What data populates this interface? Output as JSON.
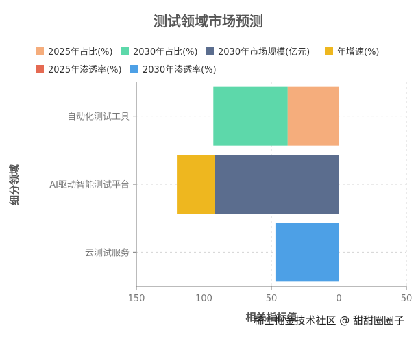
{
  "chart_data": {
    "type": "bar",
    "orientation": "horizontal",
    "stacked": true,
    "title": "测试领域市场预测",
    "xlabel": "相关指标值",
    "ylabel": "细分领域",
    "xlim": [
      150,
      -50
    ],
    "x_ticks": [
      150,
      100,
      50,
      0,
      -50
    ],
    "x_tick_labels": [
      "150",
      "100",
      "50",
      "0",
      "50"
    ],
    "grid": true,
    "legend_position": "top",
    "categories": [
      "自动化测试工具",
      "AI驱动智能测试平台",
      "云测试服务"
    ],
    "series": [
      {
        "name": "2025年占比(%)",
        "color": "#f5ad7c",
        "values": [
          38,
          null,
          null
        ]
      },
      {
        "name": "2030年占比(%)",
        "color": "#5dd8aa",
        "values": [
          55,
          null,
          null
        ]
      },
      {
        "name": "2030年市场规模(亿元)",
        "color": "#5b6d8e",
        "values": [
          null,
          92,
          null
        ]
      },
      {
        "name": "年增速(%)",
        "color": "#eeb71f",
        "values": [
          null,
          28,
          null
        ]
      },
      {
        "name": "2025年渗透率(%)",
        "color": "#e56a52",
        "values": [
          null,
          null,
          null
        ]
      },
      {
        "name": "2030年渗透率(%)",
        "color": "#4da0e6",
        "values": [
          null,
          null,
          47
        ]
      }
    ]
  },
  "watermark": "稀土掘金技术社区 @ 甜甜圈圈子"
}
